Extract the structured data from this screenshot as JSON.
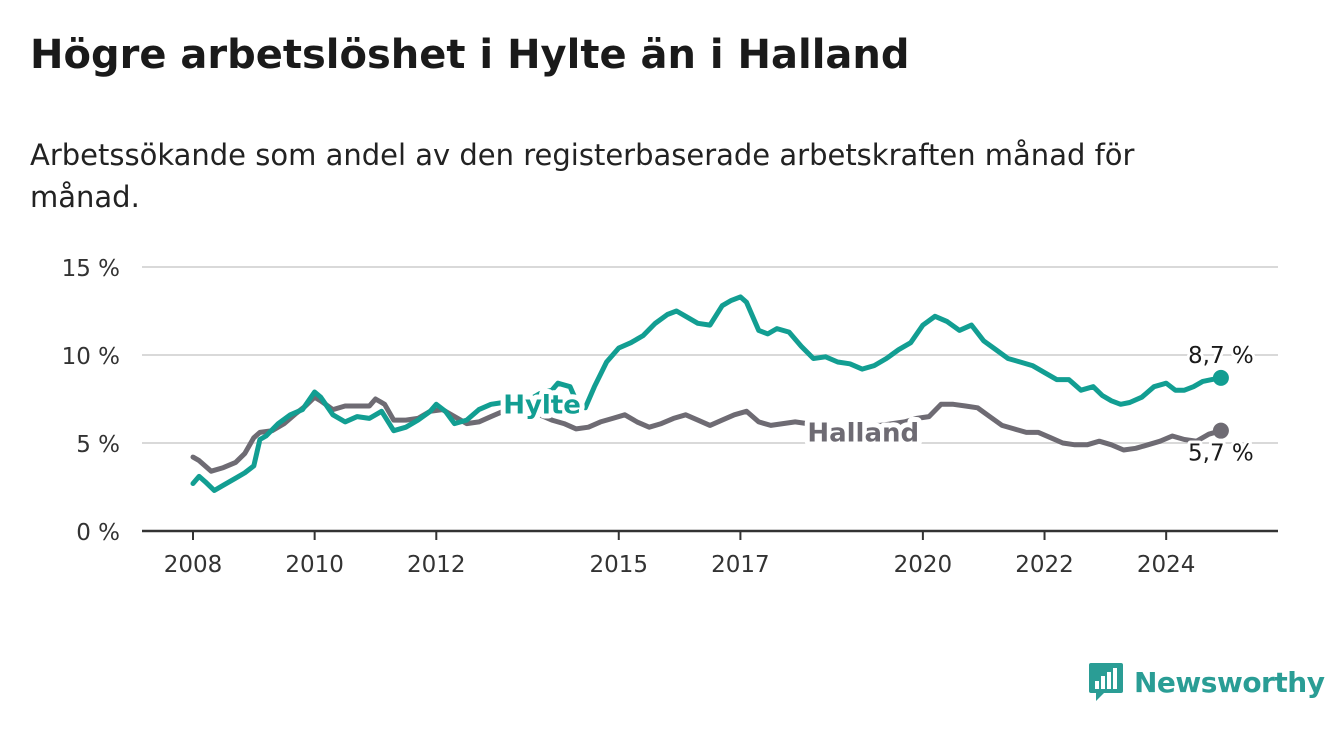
{
  "title": "Högre arbetslöshet i Hylte än i Halland",
  "subtitle": "Arbetssökande som andel av den registerbaserade arbetskraften månad för månad.",
  "brand": {
    "name": "Newsworthy",
    "color": "#2a9d95"
  },
  "chart_data": {
    "type": "line",
    "title": "Högre arbetslöshet i Hylte än i Halland",
    "subtitle": "Arbetssökande som andel av den registerbaserade arbetskraften månad för månad.",
    "xlim": [
      2008.0,
      2025.0
    ],
    "ylim": [
      0,
      15
    ],
    "y_ticks": [
      0,
      5,
      10,
      15
    ],
    "y_tick_labels": [
      "0 %",
      "5 %",
      "10 %",
      "15 %"
    ],
    "x_ticks": [
      2008,
      2010,
      2012,
      2015,
      2017,
      2020,
      2022,
      2024
    ],
    "x_tick_labels": [
      "2008",
      "2010",
      "2012",
      "2015",
      "2017",
      "2020",
      "2022",
      "2024"
    ],
    "grid": "horizontal",
    "legend": "inline labels",
    "series": [
      {
        "name": "Hylte",
        "color": "#129e92",
        "end_label": "8,7 %",
        "x": [
          2008.0,
          2008.1,
          2008.2,
          2008.35,
          2008.5,
          2008.7,
          2008.85,
          2009.0,
          2009.1,
          2009.2,
          2009.4,
          2009.6,
          2009.8,
          2010.0,
          2010.1,
          2010.3,
          2010.5,
          2010.7,
          2010.9,
          2011.1,
          2011.3,
          2011.5,
          2011.7,
          2011.9,
          2012.0,
          2012.15,
          2012.3,
          2012.5,
          2012.7,
          2012.9,
          2013.1,
          2013.3,
          2013.5,
          2013.7,
          2013.9,
          2014.0,
          2014.2,
          2014.3,
          2014.45,
          2014.6,
          2014.8,
          2015.0,
          2015.2,
          2015.4,
          2015.6,
          2015.8,
          2015.95,
          2016.1,
          2016.3,
          2016.5,
          2016.7,
          2016.85,
          2017.0,
          2017.1,
          2017.3,
          2017.45,
          2017.6,
          2017.8,
          2018.0,
          2018.2,
          2018.4,
          2018.6,
          2018.8,
          2019.0,
          2019.2,
          2019.4,
          2019.6,
          2019.8,
          2020.0,
          2020.2,
          2020.4,
          2020.6,
          2020.8,
          2021.0,
          2021.2,
          2021.4,
          2021.6,
          2021.8,
          2022.0,
          2022.2,
          2022.4,
          2022.6,
          2022.8,
          2022.95,
          2023.1,
          2023.25,
          2023.4,
          2023.6,
          2023.8,
          2024.0,
          2024.15,
          2024.3,
          2024.45,
          2024.6,
          2024.75,
          2024.9
        ],
        "values": [
          2.7,
          3.1,
          2.8,
          2.3,
          2.6,
          3.0,
          3.3,
          3.7,
          5.2,
          5.4,
          6.1,
          6.6,
          6.9,
          7.9,
          7.6,
          6.6,
          6.2,
          6.5,
          6.4,
          6.8,
          5.7,
          5.9,
          6.3,
          6.8,
          7.2,
          6.8,
          6.1,
          6.3,
          6.9,
          7.2,
          7.3,
          7.1,
          7.4,
          7.8,
          8.0,
          8.4,
          8.2,
          7.4,
          7.0,
          8.2,
          9.6,
          10.4,
          10.7,
          11.1,
          11.8,
          12.3,
          12.5,
          12.2,
          11.8,
          11.7,
          12.8,
          13.1,
          13.3,
          13.0,
          11.4,
          11.2,
          11.5,
          11.3,
          10.5,
          9.8,
          9.9,
          9.6,
          9.5,
          9.2,
          9.4,
          9.8,
          10.3,
          10.7,
          11.7,
          12.2,
          11.9,
          11.4,
          11.7,
          10.8,
          10.3,
          9.8,
          9.6,
          9.4,
          9.0,
          8.6,
          8.6,
          8.0,
          8.2,
          7.7,
          7.4,
          7.2,
          7.3,
          7.6,
          8.2,
          8.4,
          8.0,
          8.0,
          8.2,
          8.5,
          8.6,
          8.7
        ]
      },
      {
        "name": "Halland",
        "color": "#6e6b73",
        "end_label": "5,7 %",
        "x": [
          2008.0,
          2008.1,
          2008.3,
          2008.5,
          2008.7,
          2008.85,
          2009.0,
          2009.1,
          2009.3,
          2009.5,
          2009.7,
          2009.85,
          2010.0,
          2010.1,
          2010.3,
          2010.5,
          2010.7,
          2010.9,
          2011.0,
          2011.15,
          2011.3,
          2011.5,
          2011.7,
          2011.9,
          2012.1,
          2012.3,
          2012.5,
          2012.7,
          2012.9,
          2013.1,
          2013.3,
          2013.5,
          2013.7,
          2013.9,
          2014.1,
          2014.3,
          2014.5,
          2014.7,
          2014.9,
          2015.1,
          2015.3,
          2015.5,
          2015.7,
          2015.9,
          2016.1,
          2016.3,
          2016.5,
          2016.7,
          2016.9,
          2017.1,
          2017.3,
          2017.5,
          2017.7,
          2017.9,
          2018.1,
          2018.3,
          2018.5,
          2018.7,
          2018.9,
          2019.1,
          2019.3,
          2019.5,
          2019.7,
          2019.9,
          2020.1,
          2020.3,
          2020.5,
          2020.7,
          2020.9,
          2021.1,
          2021.3,
          2021.5,
          2021.7,
          2021.9,
          2022.1,
          2022.3,
          2022.5,
          2022.7,
          2022.9,
          2023.1,
          2023.3,
          2023.5,
          2023.7,
          2023.9,
          2024.1,
          2024.3,
          2024.5,
          2024.7,
          2024.9
        ],
        "values": [
          4.2,
          4.0,
          3.4,
          3.6,
          3.9,
          4.4,
          5.3,
          5.6,
          5.7,
          6.1,
          6.7,
          7.1,
          7.6,
          7.4,
          6.9,
          7.1,
          7.1,
          7.1,
          7.5,
          7.2,
          6.3,
          6.3,
          6.4,
          6.8,
          6.9,
          6.5,
          6.1,
          6.2,
          6.5,
          6.8,
          6.9,
          6.8,
          6.6,
          6.3,
          6.1,
          5.8,
          5.9,
          6.2,
          6.4,
          6.6,
          6.2,
          5.9,
          6.1,
          6.4,
          6.6,
          6.3,
          6.0,
          6.3,
          6.6,
          6.8,
          6.2,
          6.0,
          6.1,
          6.2,
          6.1,
          5.9,
          5.7,
          5.6,
          5.8,
          6.0,
          6.0,
          6.1,
          6.2,
          6.4,
          6.5,
          7.2,
          7.2,
          7.1,
          7.0,
          6.5,
          6.0,
          5.8,
          5.6,
          5.6,
          5.3,
          5.0,
          4.9,
          4.9,
          5.1,
          4.9,
          4.6,
          4.7,
          4.9,
          5.1,
          5.4,
          5.2,
          5.1,
          5.5,
          5.7
        ]
      }
    ]
  }
}
